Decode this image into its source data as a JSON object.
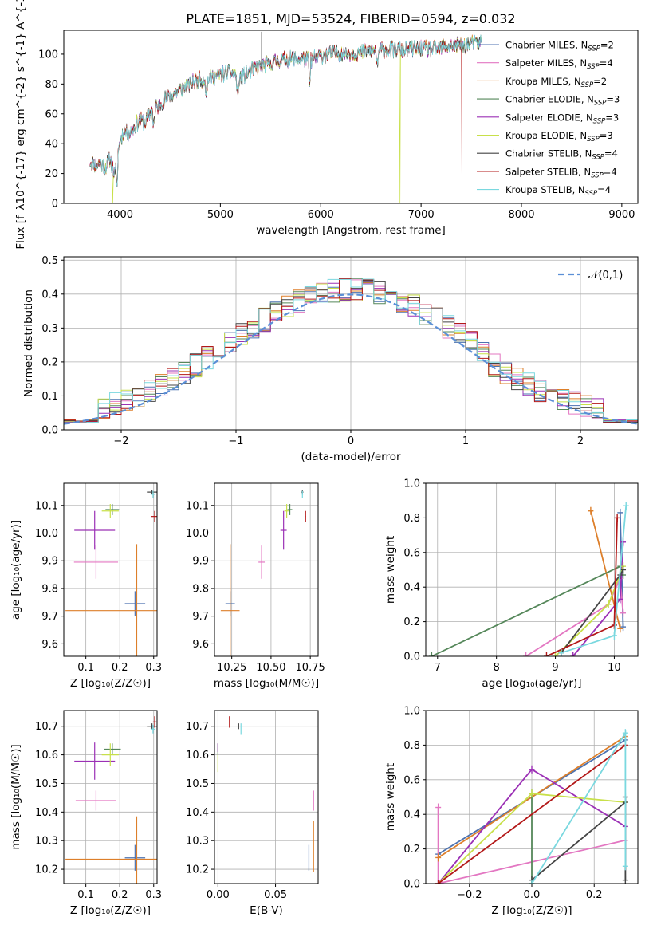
{
  "title": "PLATE=1851, MJD=53524, FIBERID=0594, z=0.032",
  "colors": [
    "#4c72b0",
    "#e377c2",
    "#dd7f2a",
    "#55875a",
    "#9b30b5",
    "#c8e04a",
    "#444444",
    "#b31818",
    "#7ad8df"
  ],
  "series_names": [
    "Chabrier MILES, N_{SSP}=2",
    "Salpeter MILES, N_{SSP}=4",
    "Kroupa MILES, N_{SSP}=2",
    "Chabrier ELODIE, N_{SSP}=3",
    "Salpeter ELODIE, N_{SSP}=3",
    "Kroupa ELODIE, N_{SSP}=3",
    "Chabrier STELIB, N_{SSP}=4",
    "Salpeter STELIB, N_{SSP}=4",
    "Kroupa STELIB, N_{SSP}=4"
  ],
  "chart_data": [
    {
      "type": "line",
      "id": "spectrum",
      "xlabel": "wavelength [Angstrom, rest frame]",
      "ylabel": "Flux [f_λ10^{-17} erg cm^{-2} s^{-1} A^{-1}]",
      "xlim": [
        3440,
        9160
      ],
      "ylim": [
        0,
        116
      ],
      "xticks": [
        4000,
        5000,
        6000,
        7000,
        8000,
        9000
      ],
      "yticks": [
        0,
        20,
        40,
        60,
        80,
        100
      ],
      "legend": "top-right",
      "continuum": [
        [
          3700,
          28
        ],
        [
          3750,
          26
        ],
        [
          3800,
          27
        ],
        [
          3850,
          24
        ],
        [
          3900,
          30
        ],
        [
          3950,
          18
        ],
        [
          4000,
          43
        ],
        [
          4050,
          49
        ],
        [
          4100,
          47
        ],
        [
          4150,
          52
        ],
        [
          4200,
          56
        ],
        [
          4250,
          54
        ],
        [
          4300,
          60
        ],
        [
          4350,
          64
        ],
        [
          4400,
          66
        ],
        [
          4450,
          70
        ],
        [
          4500,
          72
        ],
        [
          4600,
          76
        ],
        [
          4700,
          80
        ],
        [
          4800,
          83
        ],
        [
          4900,
          84
        ],
        [
          5000,
          86
        ],
        [
          5100,
          88
        ],
        [
          5200,
          84
        ],
        [
          5300,
          89
        ],
        [
          5400,
          92
        ],
        [
          5500,
          94
        ],
        [
          5600,
          96
        ],
        [
          5700,
          97
        ],
        [
          5800,
          97
        ],
        [
          5900,
          96
        ],
        [
          6000,
          99
        ],
        [
          6100,
          100
        ],
        [
          6200,
          101
        ],
        [
          6300,
          101
        ],
        [
          6400,
          101
        ],
        [
          6500,
          102
        ],
        [
          6600,
          103
        ],
        [
          6700,
          103
        ],
        [
          6800,
          103
        ],
        [
          6900,
          103
        ],
        [
          7000,
          104
        ],
        [
          7100,
          103
        ],
        [
          7200,
          104
        ],
        [
          7300,
          106
        ],
        [
          7400,
          105
        ],
        [
          7500,
          107
        ],
        [
          7600,
          108
        ]
      ],
      "dropouts": [
        {
          "series": 5,
          "x": 3930,
          "to": 0
        },
        {
          "series": 5,
          "x": 6790,
          "to": 0
        },
        {
          "series": 7,
          "x": 7410,
          "to": 0
        }
      ],
      "features": [
        {
          "x": 5410,
          "y": 115
        }
      ]
    },
    {
      "type": "histogram",
      "id": "residuals",
      "xlabel": "(data-model)/error",
      "ylabel": "Normed distribution",
      "xlim": [
        -2.5,
        2.5
      ],
      "ylim": [
        0,
        0.51
      ],
      "xticks": [
        -2,
        -1,
        0,
        1,
        2
      ],
      "yticks": [
        0.0,
        0.1,
        0.2,
        0.3,
        0.4,
        0.5
      ],
      "bin_width": 0.1,
      "reference": {
        "name": "𝒩(0,1)",
        "mean": 0,
        "sigma": 1,
        "color": "#5b8fd6"
      },
      "legend": "top-right"
    },
    {
      "type": "scatter",
      "id": "age_vs_Z",
      "xlabel": "Z [log₁₀(Z/Z☉)]",
      "ylabel": "age  [log₁₀(age/yr)]",
      "xlim": [
        0.035,
        0.31
      ],
      "ylim": [
        9.555,
        10.18
      ],
      "xticks": [
        0.1,
        0.2,
        0.3
      ],
      "yticks": [
        9.6,
        9.7,
        9.8,
        9.9,
        10.0,
        10.1
      ],
      "points": [
        {
          "s": 0,
          "x": 0.245,
          "y": 9.745,
          "xerr": 0.03,
          "yerr": 0.045
        },
        {
          "s": 1,
          "x": 0.13,
          "y": 9.895,
          "xerr": 0.065,
          "yerr": 0.06
        },
        {
          "s": 2,
          "x": 0.25,
          "y": 9.72,
          "xerr": 0.21,
          "yerr": 0.24
        },
        {
          "s": 3,
          "x": 0.178,
          "y": 10.085,
          "xerr": 0.02,
          "yerr": 0.02
        },
        {
          "s": 4,
          "x": 0.126,
          "y": 10.01,
          "xerr": 0.06,
          "yerr": 0.07
        },
        {
          "s": 5,
          "x": 0.172,
          "y": 10.08,
          "xerr": 0.025,
          "yerr": 0.025
        },
        {
          "s": 6,
          "x": 0.295,
          "y": 10.148,
          "xerr": 0.015,
          "yerr": 0.008
        },
        {
          "s": 7,
          "x": 0.303,
          "y": 10.06,
          "xerr": 0.01,
          "yerr": 0.02
        },
        {
          "s": 8,
          "x": 0.298,
          "y": 10.14,
          "xerr": 0.005,
          "yerr": 0.012
        }
      ]
    },
    {
      "type": "scatter",
      "id": "age_vs_mass",
      "xlabel": "mass [log₁₀(M/M☉)]",
      "ylabel": "",
      "xlim": [
        10.14,
        10.8
      ],
      "ylim": [
        9.555,
        10.18
      ],
      "xticks": [
        10.25,
        10.5,
        10.75
      ],
      "yticks": [
        9.6,
        9.7,
        9.8,
        9.9,
        10.0,
        10.1
      ],
      "points": [
        {
          "s": 0,
          "x": 10.24,
          "y": 9.745,
          "xerr": 0.03,
          "yerr": 0.045
        },
        {
          "s": 1,
          "x": 10.44,
          "y": 9.895,
          "xerr": 0.02,
          "yerr": 0.06
        },
        {
          "s": 2,
          "x": 10.24,
          "y": 9.72,
          "xerr": 0.06,
          "yerr": 0.24
        },
        {
          "s": 3,
          "x": 10.62,
          "y": 10.085,
          "xerr": 0.015,
          "yerr": 0.02
        },
        {
          "s": 4,
          "x": 10.58,
          "y": 10.01,
          "xerr": 0.02,
          "yerr": 0.07
        },
        {
          "s": 5,
          "x": 10.6,
          "y": 10.08,
          "xerr": 0.015,
          "yerr": 0.025
        },
        {
          "s": 6,
          "x": 10.7,
          "y": 10.148,
          "xerr": 0.006,
          "yerr": 0.008
        },
        {
          "s": 7,
          "x": 10.72,
          "y": 10.06,
          "xerr": 0.002,
          "yerr": 0.02
        },
        {
          "s": 8,
          "x": 10.7,
          "y": 10.14,
          "xerr": 0.004,
          "yerr": 0.012
        }
      ]
    },
    {
      "type": "line",
      "id": "weight_vs_age",
      "xlabel": "age  [log₁₀(age/yr)]",
      "ylabel": "mass weight",
      "xlim": [
        6.8,
        10.4
      ],
      "ylim": [
        0,
        1.0
      ],
      "xticks": [
        7,
        8,
        9,
        10
      ],
      "yticks": [
        0.0,
        0.2,
        0.4,
        0.6,
        0.8,
        1.0
      ],
      "series": [
        {
          "s": 0,
          "points": [
            [
              10.1,
              0.83
            ],
            [
              10.15,
              0.17
            ]
          ]
        },
        {
          "s": 1,
          "points": [
            [
              8.5,
              0.0
            ],
            [
              9.9,
              0.3
            ],
            [
              10.1,
              0.45
            ],
            [
              10.15,
              0.25
            ]
          ]
        },
        {
          "s": 2,
          "points": [
            [
              9.6,
              0.84
            ],
            [
              10.1,
              0.16
            ]
          ]
        },
        {
          "s": 3,
          "points": [
            [
              6.9,
              0.0
            ],
            [
              10.1,
              0.52
            ],
            [
              10.15,
              0.47
            ]
          ]
        },
        {
          "s": 4,
          "points": [
            [
              9.3,
              0.0
            ],
            [
              10.1,
              0.33
            ],
            [
              10.15,
              0.66
            ]
          ]
        },
        {
          "s": 5,
          "points": [
            [
              9.0,
              0.0
            ],
            [
              9.9,
              0.3
            ],
            [
              10.15,
              0.52
            ]
          ]
        },
        {
          "s": 6,
          "points": [
            [
              9.1,
              0.02
            ],
            [
              10.1,
              0.47
            ],
            [
              10.15,
              0.5
            ]
          ]
        },
        {
          "s": 7,
          "points": [
            [
              8.85,
              0.0
            ],
            [
              10.0,
              0.18
            ],
            [
              10.05,
              0.8
            ]
          ]
        },
        {
          "s": 8,
          "points": [
            [
              9.1,
              0.02
            ],
            [
              10.0,
              0.12
            ],
            [
              10.2,
              0.87
            ]
          ]
        }
      ]
    },
    {
      "type": "scatter",
      "id": "mass_vs_Z",
      "xlabel": "Z [log₁₀(Z/Z☉)]",
      "ylabel": "mass [log₁₀(M/M☉)]",
      "xlim": [
        0.035,
        0.31
      ],
      "ylim": [
        10.15,
        10.755
      ],
      "xticks": [
        0.1,
        0.2,
        0.3
      ],
      "yticks": [
        10.2,
        10.3,
        10.4,
        10.5,
        10.6,
        10.7
      ],
      "points": [
        {
          "s": 0,
          "x": 0.245,
          "y": 10.24,
          "xerr": 0.03,
          "yerr": 0.045
        },
        {
          "s": 1,
          "x": 0.13,
          "y": 10.44,
          "xerr": 0.06,
          "yerr": 0.035
        },
        {
          "s": 2,
          "x": 0.25,
          "y": 10.235,
          "xerr": 0.21,
          "yerr": 0.15
        },
        {
          "s": 3,
          "x": 0.178,
          "y": 10.62,
          "xerr": 0.025,
          "yerr": 0.02
        },
        {
          "s": 4,
          "x": 0.126,
          "y": 10.578,
          "xerr": 0.06,
          "yerr": 0.065
        },
        {
          "s": 5,
          "x": 0.172,
          "y": 10.6,
          "xerr": 0.025,
          "yerr": 0.04
        },
        {
          "s": 6,
          "x": 0.295,
          "y": 10.7,
          "xerr": 0.015,
          "yerr": 0.01
        },
        {
          "s": 7,
          "x": 0.303,
          "y": 10.715,
          "xerr": 0.005,
          "yerr": 0.02
        },
        {
          "s": 8,
          "x": 0.298,
          "y": 10.69,
          "xerr": 0.005,
          "yerr": 0.015
        }
      ]
    },
    {
      "type": "scatter",
      "id": "mass_vs_ebv",
      "xlabel": "E(B-V)",
      "ylabel": "",
      "xlim": [
        -0.003,
        0.087
      ],
      "ylim": [
        10.15,
        10.755
      ],
      "xticks": [
        0.0,
        0.05
      ],
      "yticks": [
        10.2,
        10.3,
        10.4,
        10.5,
        10.6,
        10.7
      ],
      "points": [
        {
          "s": 0,
          "x": 0.079,
          "y": 10.24,
          "xerr": 0.0,
          "yerr": 0.045
        },
        {
          "s": 1,
          "x": 0.083,
          "y": 10.44,
          "xerr": 0.0,
          "yerr": 0.035
        },
        {
          "s": 2,
          "x": 0.083,
          "y": 10.28,
          "xerr": 0.0,
          "yerr": 0.09
        },
        {
          "s": 3,
          "x": 0.0,
          "y": 10.62,
          "xerr": 0.0,
          "yerr": 0.02
        },
        {
          "s": 4,
          "x": 0.0,
          "y": 10.625,
          "xerr": 0.0,
          "yerr": 0.015
        },
        {
          "s": 5,
          "x": 0.0,
          "y": 10.57,
          "xerr": 0.0,
          "yerr": 0.03
        },
        {
          "s": 6,
          "x": 0.018,
          "y": 10.7,
          "xerr": 0.0,
          "yerr": 0.01
        },
        {
          "s": 7,
          "x": 0.01,
          "y": 10.715,
          "xerr": 0.0,
          "yerr": 0.02
        },
        {
          "s": 8,
          "x": 0.02,
          "y": 10.69,
          "xerr": 0.0,
          "yerr": 0.02
        }
      ]
    },
    {
      "type": "line",
      "id": "weight_vs_Z",
      "xlabel": "Z [log₁₀(Z/Z☉)]",
      "ylabel": "mass weight",
      "xlim": [
        -0.34,
        0.34
      ],
      "ylim": [
        0,
        1.0
      ],
      "xticks": [
        -0.2,
        0.0,
        0.2
      ],
      "yticks": [
        0.0,
        0.2,
        0.4,
        0.6,
        0.8,
        1.0
      ],
      "series": [
        {
          "s": 0,
          "points": [
            [
              -0.3,
              0.17
            ],
            [
              0.3,
              0.83
            ]
          ]
        },
        {
          "s": 1,
          "points": [
            [
              -0.3,
              0.0
            ],
            [
              -0.3,
              0.44
            ],
            [
              -0.3,
              0.0
            ],
            [
              0.3,
              0.25
            ]
          ]
        },
        {
          "s": 2,
          "points": [
            [
              -0.3,
              0.15
            ],
            [
              0.3,
              0.85
            ]
          ]
        },
        {
          "s": 3,
          "points": [
            [
              0.0,
              0.0
            ],
            [
              0.0,
              0.52
            ]
          ]
        },
        {
          "s": 4,
          "points": [
            [
              -0.3,
              0.0
            ],
            [
              0.0,
              0.66
            ],
            [
              0.3,
              0.33
            ]
          ]
        },
        {
          "s": 5,
          "points": [
            [
              -0.3,
              0.0
            ],
            [
              0.0,
              0.52
            ],
            [
              0.3,
              0.47
            ]
          ]
        },
        {
          "s": 6,
          "points": [
            [
              0.0,
              0.02
            ],
            [
              0.3,
              0.47
            ],
            [
              0.3,
              0.5
            ],
            [
              0.3,
              0.02
            ]
          ]
        },
        {
          "s": 7,
          "points": [
            [
              -0.3,
              0.0
            ],
            [
              0.3,
              0.8
            ]
          ]
        },
        {
          "s": 8,
          "points": [
            [
              0.0,
              0.0
            ],
            [
              0.3,
              0.87
            ],
            [
              0.3,
              0.1
            ]
          ]
        }
      ]
    }
  ]
}
